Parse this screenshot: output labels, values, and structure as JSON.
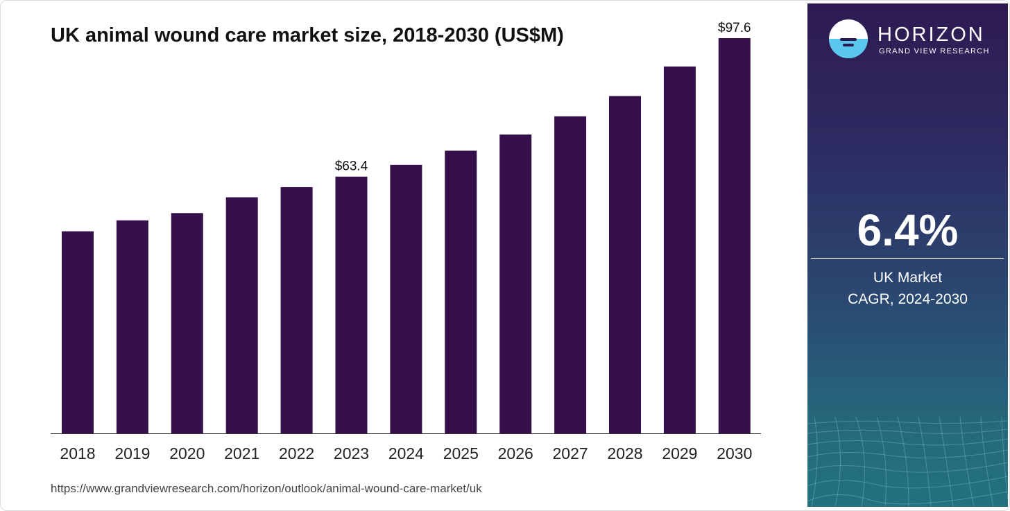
{
  "chart_data": {
    "type": "bar",
    "title": "UK animal wound care market size, 2018-2030 (US$M)",
    "categories": [
      "2018",
      "2019",
      "2020",
      "2021",
      "2022",
      "2023",
      "2024",
      "2025",
      "2026",
      "2027",
      "2028",
      "2029",
      "2030"
    ],
    "values": [
      49.9,
      52.6,
      54.4,
      58.3,
      60.8,
      63.4,
      66.3,
      69.8,
      73.8,
      78.3,
      83.3,
      90.6,
      97.6
    ],
    "value_labels": {
      "2023": "$63.4",
      "2030": "$97.6"
    },
    "xlabel": "",
    "ylabel": "",
    "ylim": [
      0,
      100
    ],
    "grid": false,
    "legend": "none",
    "bar_color": "#36104a"
  },
  "source_url": "https://www.grandviewresearch.com/horizon/outlook/animal-wound-care-market/uk",
  "sidebar": {
    "brand_name": "HORIZON",
    "brand_sub": "GRAND VIEW RESEARCH",
    "cagr_value": "6.4%",
    "cagr_label_line1": "UK Market",
    "cagr_label_line2": "CAGR, 2024-2030"
  },
  "colors": {
    "bar": "#36104a",
    "sidebar_top": "#2e1a52",
    "sidebar_bottom": "#22717f",
    "logo_water": "#5ac8ec"
  }
}
